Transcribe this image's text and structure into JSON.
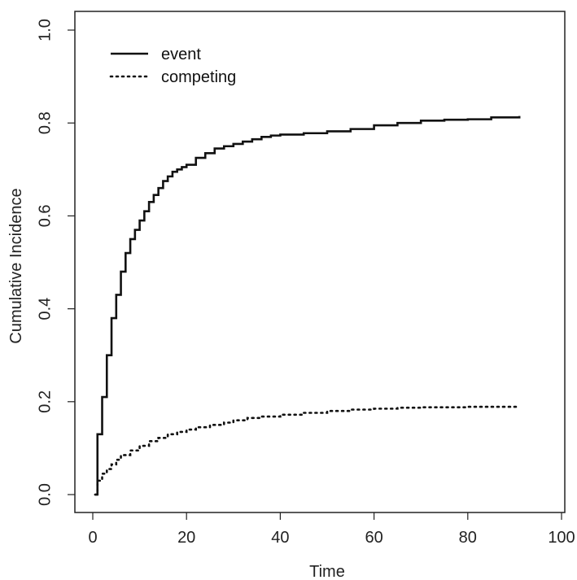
{
  "chart_data": {
    "type": "line",
    "xlabel": "Time",
    "ylabel": "Cumulative Incidence",
    "xlim": [
      0,
      100
    ],
    "ylim": [
      0,
      1
    ],
    "x_ticks": [
      "0",
      "20",
      "40",
      "60",
      "80",
      "100"
    ],
    "y_ticks": [
      "0.0",
      "0.2",
      "0.4",
      "0.6",
      "0.8",
      "1.0"
    ],
    "legend_position": "top-left",
    "grid": false,
    "series": [
      {
        "name": "event",
        "line_style": "solid",
        "step": true,
        "x": [
          0.5,
          1,
          2,
          3,
          4,
          5,
          6,
          7,
          8,
          9,
          10,
          11,
          12,
          13,
          14,
          15,
          16,
          17,
          18,
          19,
          20,
          22,
          24,
          26,
          28,
          30,
          32,
          34,
          36,
          38,
          40,
          45,
          50,
          55,
          60,
          65,
          70,
          75,
          80,
          85,
          91
        ],
        "values": [
          0.0,
          0.13,
          0.21,
          0.3,
          0.38,
          0.43,
          0.48,
          0.52,
          0.55,
          0.57,
          0.59,
          0.61,
          0.63,
          0.645,
          0.66,
          0.675,
          0.685,
          0.695,
          0.7,
          0.705,
          0.71,
          0.725,
          0.735,
          0.745,
          0.75,
          0.755,
          0.76,
          0.765,
          0.77,
          0.773,
          0.775,
          0.778,
          0.782,
          0.787,
          0.795,
          0.8,
          0.805,
          0.807,
          0.808,
          0.812,
          0.815
        ]
      },
      {
        "name": "competing",
        "line_style": "dotted",
        "step": true,
        "x": [
          0.5,
          1,
          2,
          3,
          4,
          5,
          6,
          8,
          10,
          12,
          14,
          16,
          18,
          20,
          22,
          25,
          28,
          30,
          33,
          36,
          40,
          45,
          50,
          55,
          60,
          65,
          70,
          80,
          91
        ],
        "values": [
          0.0,
          0.03,
          0.045,
          0.055,
          0.065,
          0.075,
          0.085,
          0.095,
          0.105,
          0.115,
          0.122,
          0.13,
          0.135,
          0.14,
          0.145,
          0.15,
          0.155,
          0.16,
          0.165,
          0.168,
          0.172,
          0.176,
          0.18,
          0.183,
          0.185,
          0.187,
          0.188,
          0.189,
          0.19
        ]
      }
    ]
  }
}
